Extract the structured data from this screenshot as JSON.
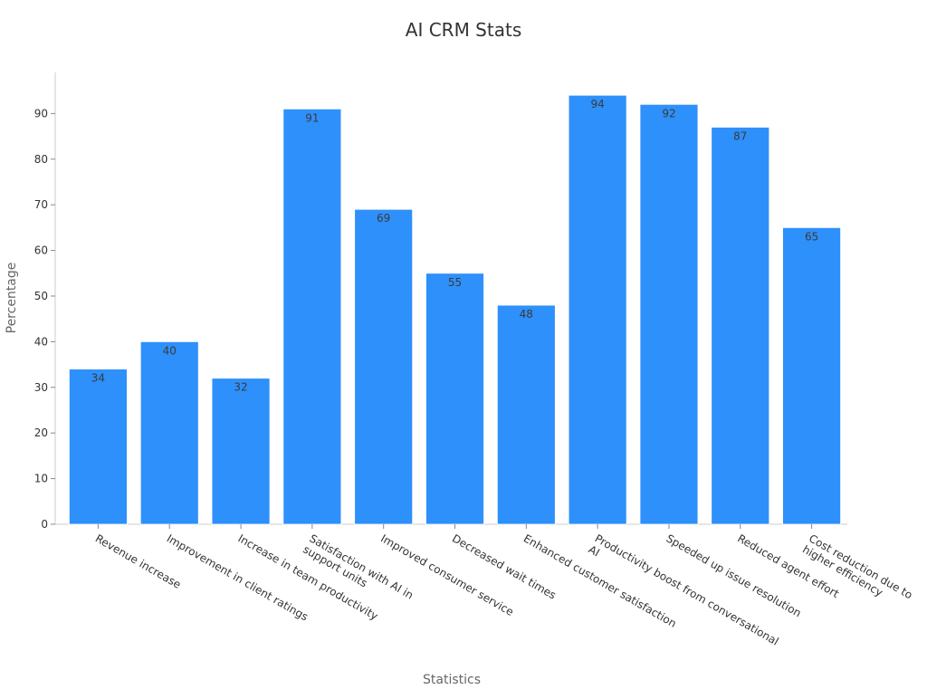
{
  "chart_data": {
    "type": "bar",
    "title": "AI CRM Stats",
    "xlabel": "Statistics",
    "ylabel": "Percentage",
    "ylim": [
      0,
      99
    ],
    "yticks": [
      0,
      10,
      20,
      30,
      40,
      50,
      60,
      70,
      80,
      90
    ],
    "grid": false,
    "bar_color": "#2e90fa",
    "categories": [
      [
        "Revenue increase"
      ],
      [
        "Improvement in client ratings"
      ],
      [
        "Increase in team productivity"
      ],
      [
        "Satisfaction with AI in",
        "support units"
      ],
      [
        "Improved consumer service"
      ],
      [
        "Decreased wait times"
      ],
      [
        "Enhanced customer satisfaction"
      ],
      [
        "Productivity boost from conversational",
        "AI"
      ],
      [
        "Speeded up issue resolution"
      ],
      [
        "Reduced agent effort"
      ],
      [
        "Cost reduction due to",
        "higher efficiency"
      ]
    ],
    "values": [
      34,
      40,
      32,
      91,
      69,
      55,
      48,
      94,
      92,
      87,
      65
    ]
  }
}
